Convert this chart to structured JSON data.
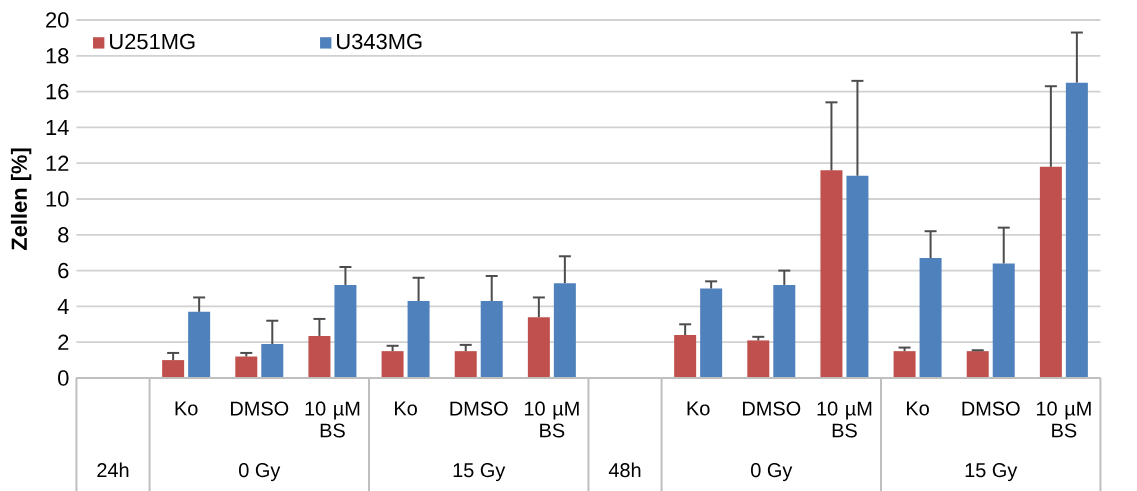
{
  "chart_data": {
    "type": "bar",
    "ylabel": "Zellen [%]",
    "categories": [
      null,
      "Ko",
      "DMSO",
      "10 µM BS",
      "Ko",
      "DMSO",
      "10 µM BS",
      null,
      "Ko",
      "DMSO",
      "10 µM BS",
      "Ko",
      "DMSO",
      "10 µM BS"
    ],
    "annotations": [
      "24h",
      "0 Gy",
      "15 Gy",
      "48h",
      "0 Gy",
      "15 Gy"
    ],
    "series": [
      {
        "name": "U251MG",
        "color": "#c0504d",
        "values": [
          null,
          1.0,
          1.2,
          2.35,
          1.5,
          1.5,
          3.4,
          null,
          2.4,
          2.1,
          11.6,
          1.5,
          1.5,
          11.8
        ],
        "errors": [
          null,
          [
            1.0,
            1.4
          ],
          [
            1.2,
            1.4
          ],
          [
            2.35,
            3.3
          ],
          [
            1.5,
            1.8
          ],
          [
            1.5,
            1.85
          ],
          [
            3.4,
            4.5
          ],
          null,
          [
            2.4,
            3.0
          ],
          [
            2.1,
            2.3
          ],
          [
            11.6,
            15.4
          ],
          [
            1.5,
            1.7
          ],
          [
            1.5,
            1.55
          ],
          [
            11.8,
            16.3
          ]
        ]
      },
      {
        "name": "U343MG",
        "color": "#4f81bd",
        "values": [
          null,
          3.7,
          1.9,
          5.2,
          4.3,
          4.3,
          5.3,
          null,
          5.0,
          5.2,
          11.3,
          6.7,
          6.4,
          16.5
        ],
        "errors": [
          null,
          [
            3.7,
            4.5
          ],
          [
            1.9,
            3.2
          ],
          [
            5.2,
            6.2
          ],
          [
            4.3,
            5.6
          ],
          [
            4.3,
            5.7
          ],
          [
            5.3,
            6.8
          ],
          null,
          [
            5.0,
            5.4
          ],
          [
            5.2,
            6.0
          ],
          [
            11.3,
            16.6
          ],
          [
            6.7,
            8.2
          ],
          [
            6.4,
            8.4
          ],
          [
            16.5,
            19.3
          ]
        ]
      }
    ],
    "ylim": [
      0,
      20
    ],
    "yticks": [
      0,
      2,
      4,
      6,
      8,
      10,
      12,
      14,
      16,
      18,
      20
    ],
    "grid": "y",
    "legend": "top left"
  }
}
